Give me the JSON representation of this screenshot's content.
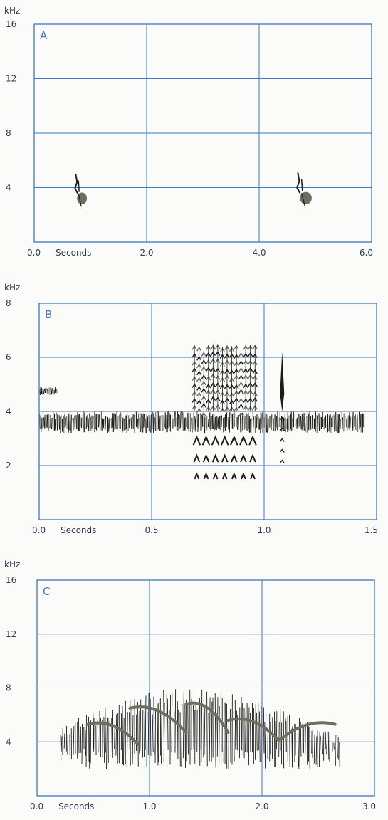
{
  "chart_data": [
    {
      "type": "spectrogram",
      "panel_label": "A",
      "y_unit_label": "kHz",
      "xlabel": "Seconds",
      "xlim": [
        0,
        6
      ],
      "ylim": [
        0,
        16
      ],
      "x_ticks": [
        "0.0",
        "2.0",
        "4.0",
        "6.0"
      ],
      "y_ticks": [
        "4",
        "8",
        "12",
        "16"
      ],
      "grid": true,
      "traces": [
        {
          "t_start": 0.7,
          "t_end": 0.95,
          "f_low": 2.6,
          "f_high": 5.0,
          "shape": "note"
        },
        {
          "t_start": 4.65,
          "t_end": 4.95,
          "f_low": 2.6,
          "f_high": 5.1,
          "shape": "note"
        }
      ]
    },
    {
      "type": "spectrogram",
      "panel_label": "B",
      "y_unit_label": "kHz",
      "xlabel": "Seconds",
      "xlim": [
        0,
        1.5
      ],
      "ylim": [
        0,
        8
      ],
      "x_ticks": [
        "0.0",
        "0.5",
        "1.0",
        "1.5"
      ],
      "y_ticks": [
        "2",
        "4",
        "6",
        "8"
      ],
      "grid": true,
      "traces": [
        {
          "t_start": 0.0,
          "t_end": 1.45,
          "f_low": 3.2,
          "f_high": 4.0,
          "shape": "band"
        },
        {
          "t_start": 0.0,
          "t_end": 0.08,
          "f_low": 4.6,
          "f_high": 4.9,
          "shape": "band"
        },
        {
          "t_start": 0.68,
          "t_end": 0.97,
          "f_low": 4.0,
          "f_high": 6.5,
          "shape": "dense"
        },
        {
          "t_start": 0.68,
          "t_end": 0.97,
          "f_low": 1.3,
          "f_high": 3.3,
          "shape": "chevrons"
        },
        {
          "t_start": 1.06,
          "t_end": 1.1,
          "f_low": 1.8,
          "f_high": 6.2,
          "shape": "spike"
        }
      ]
    },
    {
      "type": "spectrogram",
      "panel_label": "C",
      "y_unit_label": "kHz",
      "xlabel": "Seconds",
      "xlim": [
        0,
        3
      ],
      "ylim": [
        0,
        16
      ],
      "x_ticks": [
        "0.0",
        "1.0",
        "2.0",
        "3.0"
      ],
      "y_ticks": [
        "4",
        "8",
        "12",
        "16"
      ],
      "grid": true,
      "traces": [
        {
          "t_start": 0.2,
          "t_end": 2.7,
          "f_low": 2.0,
          "f_high": 8.0,
          "shape": "song"
        }
      ]
    }
  ],
  "colors": {
    "axis": "#2e6db4",
    "grid": "#3a7abf",
    "ink": "#1c1c1c",
    "ink_fill": "#6e6e5e",
    "text": "#2f3b55"
  }
}
